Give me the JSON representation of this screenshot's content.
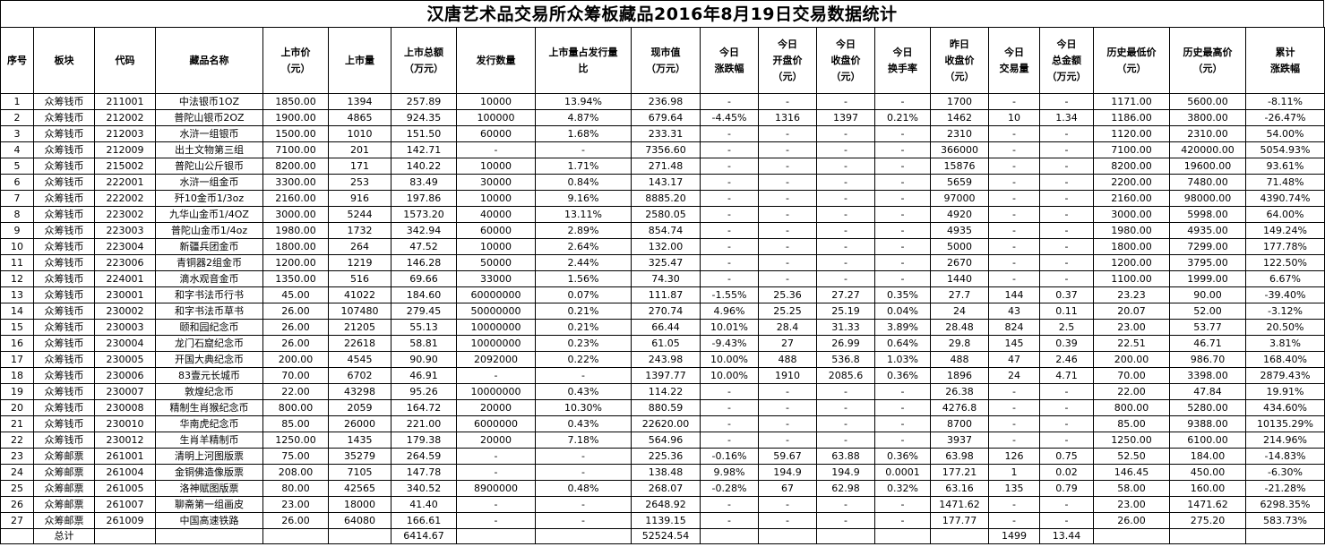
{
  "title": "汉唐艺术品交易所众筹板藏品2016年8月19日交易数据统计",
  "headers": [
    "序号",
    "板块",
    "代码",
    "藏品名称",
    "上市价\n（元）",
    "上市量",
    "上市总额\n（万元）",
    "发行数量",
    "上市量占发行量\n比",
    "现市值\n（万元）",
    "今日\n涨跌幅",
    "今日\n开盘价\n（元）",
    "今日\n收盘价\n（元）",
    "今日\n换手率",
    "昨日\n收盘价\n（元）",
    "今日\n交易量",
    "今日\n总金额\n（万元）",
    "历史最低价\n（元）",
    "历史最高价\n（元）",
    "累计\n涨跌幅"
  ],
  "rows": [
    [
      "1",
      "众筹钱币",
      "211001",
      "中法银币1OZ",
      "1850.00",
      "1394",
      "257.89",
      "10000",
      "13.94%",
      "236.98",
      "-",
      "-",
      "-",
      "-",
      "1700",
      "-",
      "-",
      "1171.00",
      "5600.00",
      "-8.11%"
    ],
    [
      "2",
      "众筹钱币",
      "212002",
      "普陀山银币2OZ",
      "1900.00",
      "4865",
      "924.35",
      "100000",
      "4.87%",
      "679.64",
      "-4.45%",
      "1316",
      "1397",
      "0.21%",
      "1462",
      "10",
      "1.34",
      "1186.00",
      "3800.00",
      "-26.47%"
    ],
    [
      "3",
      "众筹钱币",
      "212003",
      "水浒一组银币",
      "1500.00",
      "1010",
      "151.50",
      "60000",
      "1.68%",
      "233.31",
      "-",
      "-",
      "-",
      "-",
      "2310",
      "-",
      "-",
      "1120.00",
      "2310.00",
      "54.00%"
    ],
    [
      "4",
      "众筹钱币",
      "212009",
      "出土文物第三组",
      "7100.00",
      "201",
      "142.71",
      "-",
      "-",
      "7356.60",
      "-",
      "-",
      "-",
      "-",
      "366000",
      "-",
      "-",
      "7100.00",
      "420000.00",
      "5054.93%"
    ],
    [
      "5",
      "众筹钱币",
      "215002",
      "普陀山公斤银币",
      "8200.00",
      "171",
      "140.22",
      "10000",
      "1.71%",
      "271.48",
      "-",
      "-",
      "-",
      "-",
      "15876",
      "-",
      "-",
      "8200.00",
      "19600.00",
      "93.61%"
    ],
    [
      "6",
      "众筹钱币",
      "222001",
      "水浒一组金币",
      "3300.00",
      "253",
      "83.49",
      "30000",
      "0.84%",
      "143.17",
      "-",
      "-",
      "-",
      "-",
      "5659",
      "-",
      "-",
      "2200.00",
      "7480.00",
      "71.48%"
    ],
    [
      "7",
      "众筹钱币",
      "222002",
      "歼10金币1/3oz",
      "2160.00",
      "916",
      "197.86",
      "10000",
      "9.16%",
      "8885.20",
      "-",
      "-",
      "-",
      "-",
      "97000",
      "-",
      "-",
      "2160.00",
      "98000.00",
      "4390.74%"
    ],
    [
      "8",
      "众筹钱币",
      "223002",
      "九华山金币1/4OZ",
      "3000.00",
      "5244",
      "1573.20",
      "40000",
      "13.11%",
      "2580.05",
      "-",
      "-",
      "-",
      "-",
      "4920",
      "-",
      "-",
      "3000.00",
      "5998.00",
      "64.00%"
    ],
    [
      "9",
      "众筹钱币",
      "223003",
      "普陀山金币1/4oz",
      "1980.00",
      "1732",
      "342.94",
      "60000",
      "2.89%",
      "854.74",
      "-",
      "-",
      "-",
      "-",
      "4935",
      "-",
      "-",
      "1980.00",
      "4935.00",
      "149.24%"
    ],
    [
      "10",
      "众筹钱币",
      "223004",
      "新疆兵团金币",
      "1800.00",
      "264",
      "47.52",
      "10000",
      "2.64%",
      "132.00",
      "-",
      "-",
      "-",
      "-",
      "5000",
      "-",
      "-",
      "1800.00",
      "7299.00",
      "177.78%"
    ],
    [
      "11",
      "众筹钱币",
      "223006",
      "青铜器2组金币",
      "1200.00",
      "1219",
      "146.28",
      "50000",
      "2.44%",
      "325.47",
      "-",
      "-",
      "-",
      "-",
      "2670",
      "-",
      "-",
      "1200.00",
      "3795.00",
      "122.50%"
    ],
    [
      "12",
      "众筹钱币",
      "224001",
      "滴水观音金币",
      "1350.00",
      "516",
      "69.66",
      "33000",
      "1.56%",
      "74.30",
      "-",
      "-",
      "-",
      "-",
      "1440",
      "-",
      "-",
      "1100.00",
      "1999.00",
      "6.67%"
    ],
    [
      "13",
      "众筹钱币",
      "230001",
      "和字书法币行书",
      "45.00",
      "41022",
      "184.60",
      "60000000",
      "0.07%",
      "111.87",
      "-1.55%",
      "25.36",
      "27.27",
      "0.35%",
      "27.7",
      "144",
      "0.37",
      "23.23",
      "90.00",
      "-39.40%"
    ],
    [
      "14",
      "众筹钱币",
      "230002",
      "和字书法币草书",
      "26.00",
      "107480",
      "279.45",
      "50000000",
      "0.21%",
      "270.74",
      "4.96%",
      "25.25",
      "25.19",
      "0.04%",
      "24",
      "43",
      "0.11",
      "20.07",
      "52.00",
      "-3.12%"
    ],
    [
      "15",
      "众筹钱币",
      "230003",
      "颐和园纪念币",
      "26.00",
      "21205",
      "55.13",
      "10000000",
      "0.21%",
      "66.44",
      "10.01%",
      "28.4",
      "31.33",
      "3.89%",
      "28.48",
      "824",
      "2.5",
      "23.00",
      "53.77",
      "20.50%"
    ],
    [
      "16",
      "众筹钱币",
      "230004",
      "龙门石窟纪念币",
      "26.00",
      "22618",
      "58.81",
      "10000000",
      "0.23%",
      "61.05",
      "-9.43%",
      "27",
      "26.99",
      "0.64%",
      "29.8",
      "145",
      "0.39",
      "22.51",
      "46.71",
      "3.81%"
    ],
    [
      "17",
      "众筹钱币",
      "230005",
      "开国大典纪念币",
      "200.00",
      "4545",
      "90.90",
      "2092000",
      "0.22%",
      "243.98",
      "10.00%",
      "488",
      "536.8",
      "1.03%",
      "488",
      "47",
      "2.46",
      "200.00",
      "986.70",
      "168.40%"
    ],
    [
      "18",
      "众筹钱币",
      "230006",
      "83壹元长城币",
      "70.00",
      "6702",
      "46.91",
      "-",
      "-",
      "1397.77",
      "10.00%",
      "1910",
      "2085.6",
      "0.36%",
      "1896",
      "24",
      "4.71",
      "70.00",
      "3398.00",
      "2879.43%"
    ],
    [
      "19",
      "众筹钱币",
      "230007",
      "敦煌纪念币",
      "22.00",
      "43298",
      "95.26",
      "10000000",
      "0.43%",
      "114.22",
      "-",
      "-",
      "-",
      "-",
      "26.38",
      "-",
      "-",
      "22.00",
      "47.84",
      "19.91%"
    ],
    [
      "20",
      "众筹钱币",
      "230008",
      "精制生肖猴纪念币",
      "800.00",
      "2059",
      "164.72",
      "20000",
      "10.30%",
      "880.59",
      "-",
      "-",
      "-",
      "-",
      "4276.8",
      "-",
      "-",
      "800.00",
      "5280.00",
      "434.60%"
    ],
    [
      "21",
      "众筹钱币",
      "230010",
      "华南虎纪念币",
      "85.00",
      "26000",
      "221.00",
      "6000000",
      "0.43%",
      "22620.00",
      "-",
      "-",
      "-",
      "-",
      "8700",
      "-",
      "-",
      "85.00",
      "9388.00",
      "10135.29%"
    ],
    [
      "22",
      "众筹钱币",
      "230012",
      "生肖羊精制币",
      "1250.00",
      "1435",
      "179.38",
      "20000",
      "7.18%",
      "564.96",
      "-",
      "-",
      "-",
      "-",
      "3937",
      "-",
      "-",
      "1250.00",
      "6100.00",
      "214.96%"
    ],
    [
      "23",
      "众筹邮票",
      "261001",
      "清明上河图版票",
      "75.00",
      "35279",
      "264.59",
      "-",
      "-",
      "225.36",
      "-0.16%",
      "59.67",
      "63.88",
      "0.36%",
      "63.98",
      "126",
      "0.75",
      "52.50",
      "184.00",
      "-14.83%"
    ],
    [
      "24",
      "众筹邮票",
      "261004",
      "金铜佛造像版票",
      "208.00",
      "7105",
      "147.78",
      "-",
      "-",
      "138.48",
      "9.98%",
      "194.9",
      "194.9",
      "0.0001",
      "177.21",
      "1",
      "0.02",
      "146.45",
      "450.00",
      "-6.30%"
    ],
    [
      "25",
      "众筹邮票",
      "261005",
      "洛神赋图版票",
      "80.00",
      "42565",
      "340.52",
      "8900000",
      "0.48%",
      "268.07",
      "-0.28%",
      "67",
      "62.98",
      "0.32%",
      "63.16",
      "135",
      "0.79",
      "58.00",
      "160.00",
      "-21.28%"
    ],
    [
      "26",
      "众筹邮票",
      "261007",
      "聊斋第一组画皮",
      "23.00",
      "18000",
      "41.40",
      "-",
      "-",
      "2648.92",
      "-",
      "-",
      "-",
      "-",
      "1471.62",
      "-",
      "-",
      "23.00",
      "1471.62",
      "6298.35%"
    ],
    [
      "27",
      "众筹邮票",
      "261009",
      "中国高速铁路",
      "26.00",
      "64080",
      "166.61",
      "-",
      "-",
      "1139.15",
      "-",
      "-",
      "-",
      "-",
      "177.77",
      "-",
      "-",
      "26.00",
      "275.20",
      "583.73%"
    ]
  ],
  "total_row": [
    "",
    "总计",
    "",
    "",
    "",
    "",
    "6414.67",
    "",
    "",
    "52524.54",
    "",
    "",
    "",
    "",
    "",
    "1499",
    "13.44",
    "",
    "",
    ""
  ]
}
